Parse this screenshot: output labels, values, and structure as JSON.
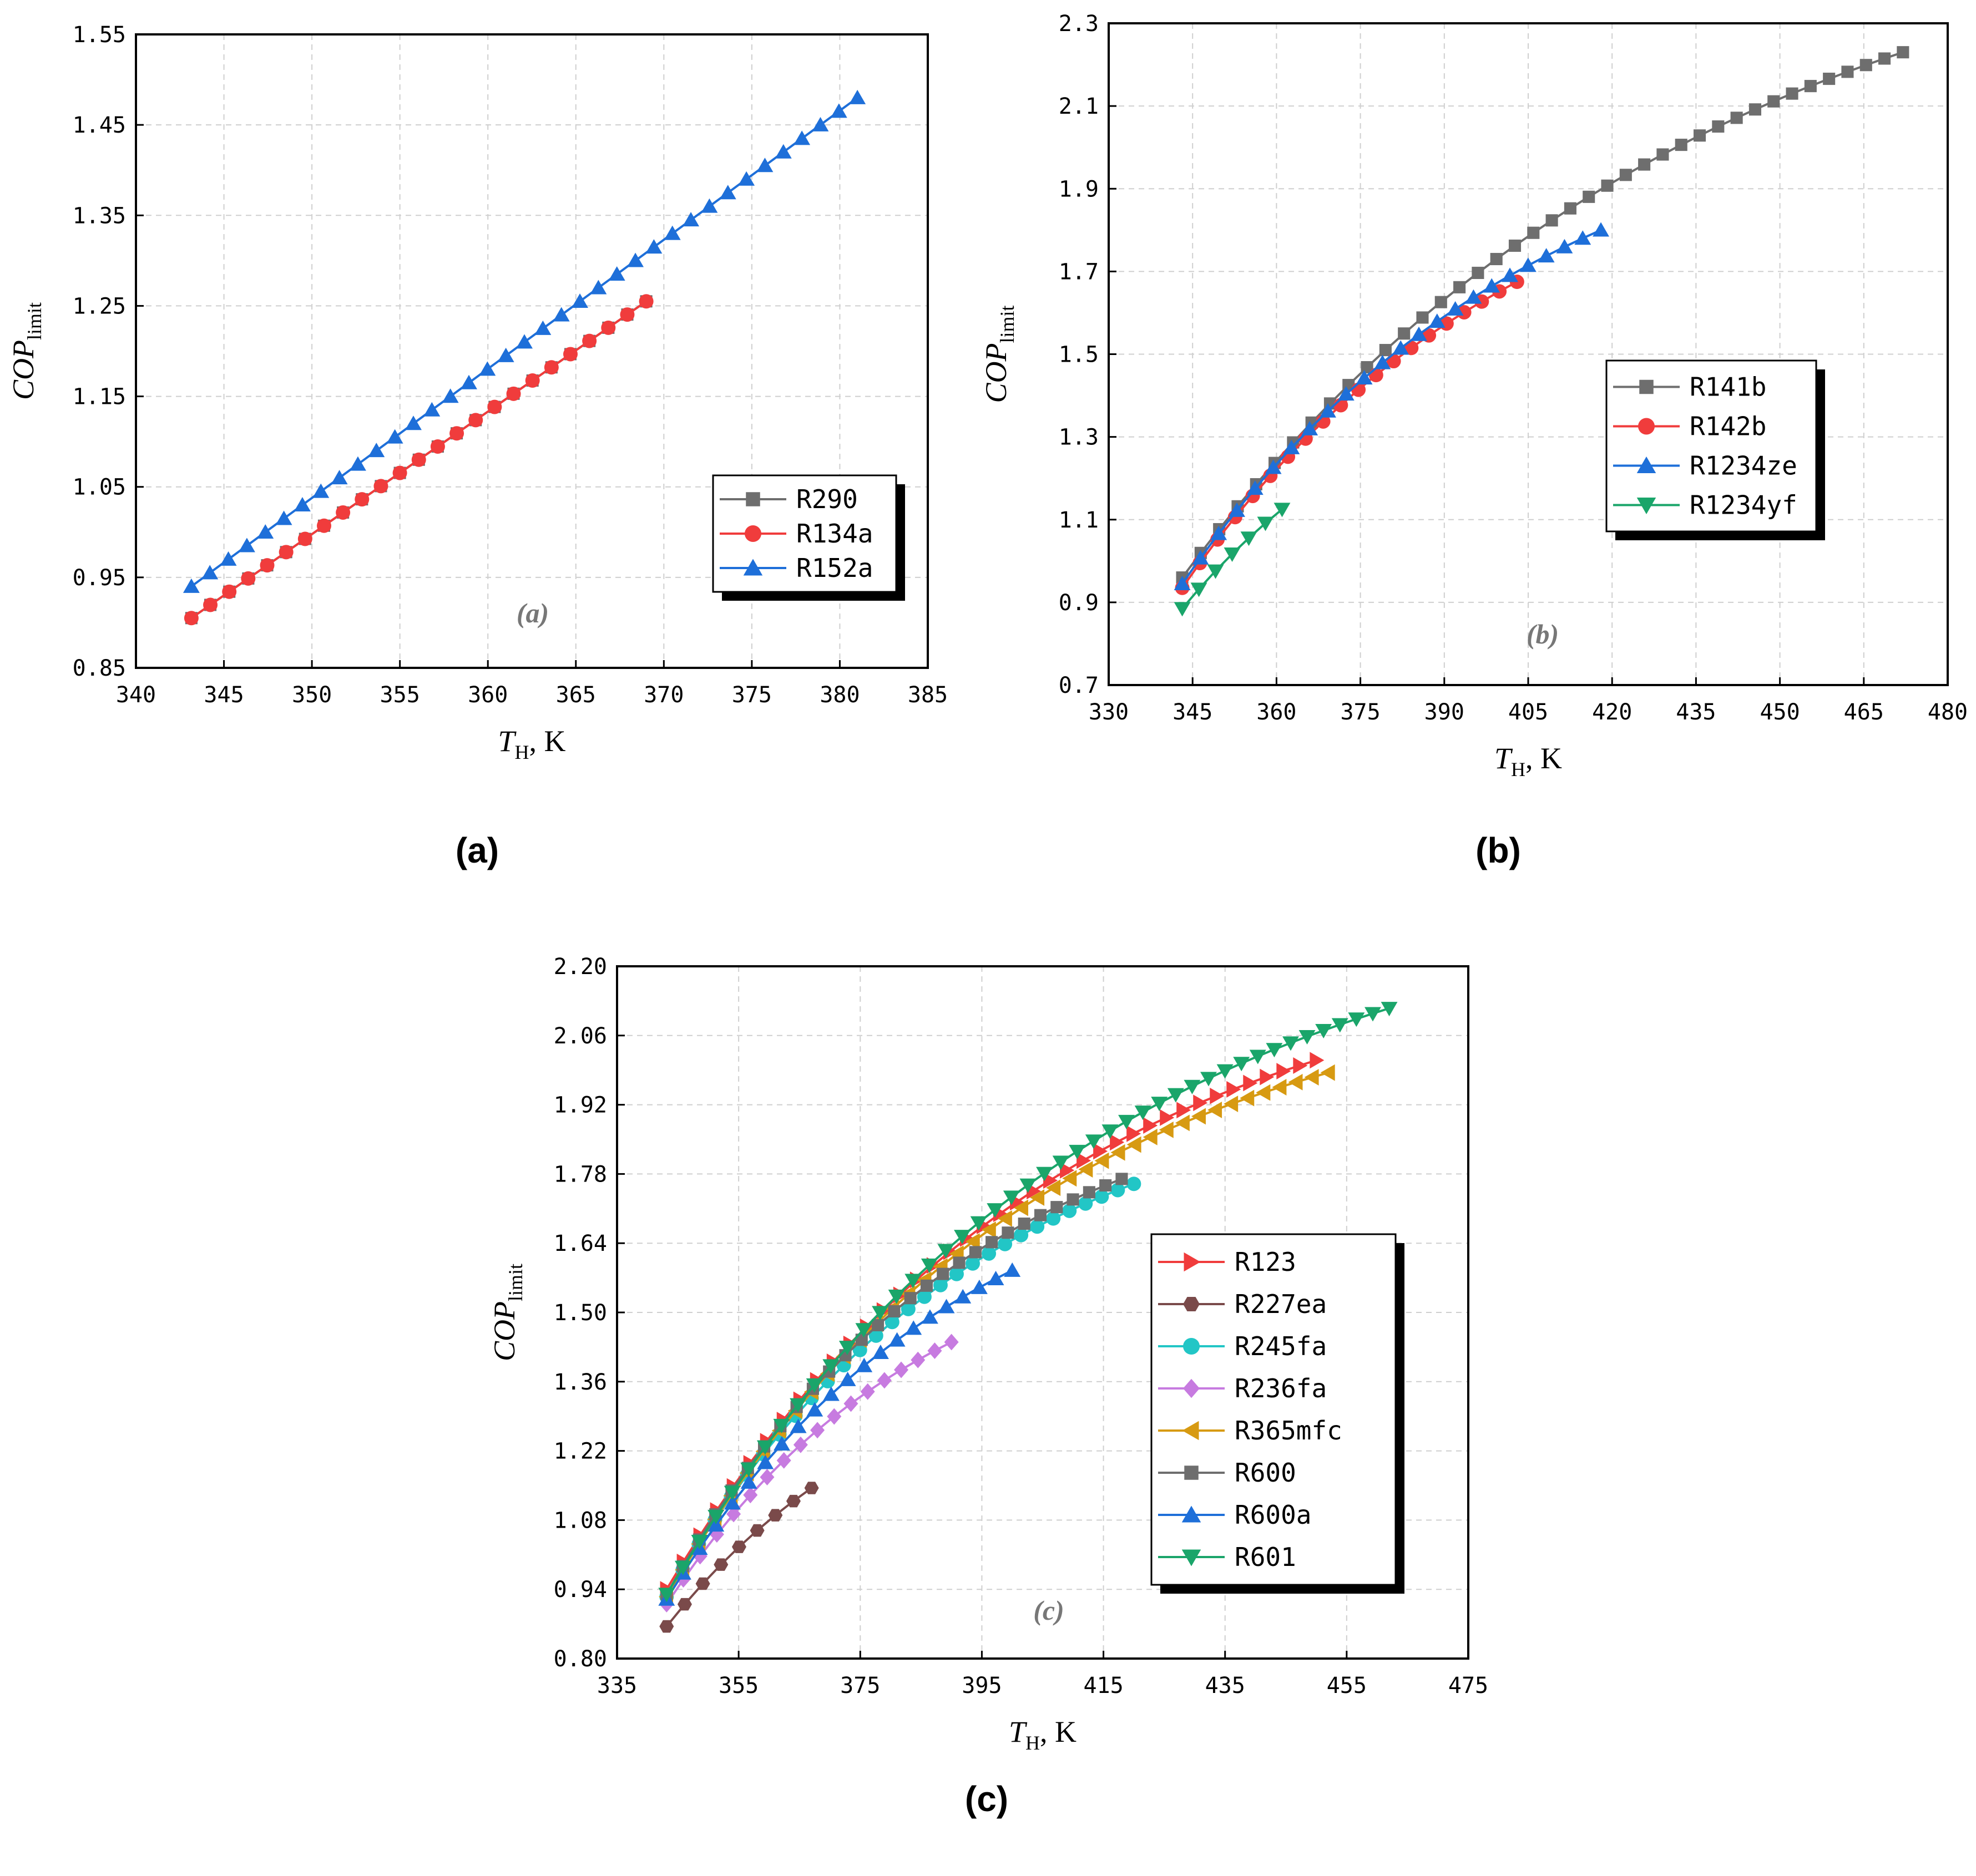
{
  "chart_data": [
    {
      "type": "line",
      "id": "a",
      "caption": "(a)",
      "inner_label": "(a)",
      "xlabel": {
        "main": "T",
        "sub": "H",
        "rest": ", K"
      },
      "ylabel": {
        "main": "COP",
        "sub": "limit"
      },
      "xlim": [
        340,
        385
      ],
      "ylim": [
        0.85,
        1.55
      ],
      "xticks": [
        340,
        345,
        350,
        355,
        360,
        365,
        370,
        375,
        380,
        385
      ],
      "yticks": [
        0.85,
        0.95,
        1.05,
        1.15,
        1.25,
        1.35,
        1.45,
        1.55
      ],
      "xtick_labels": [
        "340",
        "345",
        "350",
        "355",
        "360",
        "365",
        "370",
        "375",
        "380",
        "385"
      ],
      "ytick_labels": [
        "0.85",
        "0.95",
        "1.05",
        "1.15",
        "1.25",
        "1.35",
        "1.45",
        "1.55"
      ],
      "grid": true,
      "legend_position": "middle-right",
      "series": [
        {
          "name": "R290",
          "color": "#6e6e6e",
          "marker": "square",
          "x_start": 343.15,
          "x_end": 369,
          "y_start": 0.905,
          "y_end": 1.255,
          "curvature": 0.0,
          "n": 25
        },
        {
          "name": "R134a",
          "color": "#f03c3c",
          "marker": "circle",
          "x_start": 343.15,
          "x_end": 369,
          "y_start": 0.905,
          "y_end": 1.255,
          "curvature": 0.0,
          "n": 25
        },
        {
          "name": "R152a",
          "color": "#1e6fd9",
          "marker": "triangle-up",
          "x_start": 343.15,
          "x_end": 381,
          "y_start": 0.94,
          "y_end": 1.48,
          "curvature": 0.0,
          "n": 37
        }
      ]
    },
    {
      "type": "line",
      "id": "b",
      "caption": "(b)",
      "inner_label": "(b)",
      "xlabel": {
        "main": "T",
        "sub": "H",
        "rest": ", K"
      },
      "ylabel": {
        "main": "COP",
        "sub": "limit"
      },
      "xlim": [
        330,
        480
      ],
      "ylim": [
        0.7,
        2.3
      ],
      "xticks": [
        330,
        345,
        360,
        375,
        390,
        405,
        420,
        435,
        450,
        465,
        480
      ],
      "yticks": [
        0.7,
        0.9,
        1.1,
        1.3,
        1.5,
        1.7,
        1.9,
        2.1,
        2.3
      ],
      "xtick_labels": [
        "330",
        "345",
        "360",
        "375",
        "390",
        "405",
        "420",
        "435",
        "450",
        "465",
        "480"
      ],
      "ytick_labels": [
        "0.7",
        "0.9",
        "1.1",
        "1.3",
        "1.5",
        "1.7",
        "1.9",
        "2.1",
        "2.3"
      ],
      "grid": true,
      "legend_position": "middle-right",
      "series": [
        {
          "name": "R141b",
          "color": "#6e6e6e",
          "marker": "square",
          "x_start": 343.15,
          "x_end": 472,
          "y_start": 0.96,
          "y_end": 2.23,
          "curvature": 0.35,
          "n": 40
        },
        {
          "name": "R142b",
          "color": "#f03c3c",
          "marker": "circle",
          "x_start": 343.15,
          "x_end": 403,
          "y_start": 0.935,
          "y_end": 1.675,
          "curvature": 0.25,
          "n": 20
        },
        {
          "name": "R1234ze",
          "color": "#1e6fd9",
          "marker": "triangle-up",
          "x_start": 343.15,
          "x_end": 418,
          "y_start": 0.945,
          "y_end": 1.8,
          "curvature": 0.3,
          "n": 24
        },
        {
          "name": "R1234yf",
          "color": "#1aa56a",
          "marker": "triangle-down",
          "x_start": 343.15,
          "x_end": 361,
          "y_start": 0.885,
          "y_end": 1.125,
          "curvature": 0.1,
          "n": 7
        }
      ]
    },
    {
      "type": "line",
      "id": "c",
      "caption": "(c)",
      "inner_label": "(c)",
      "xlabel": {
        "main": "T",
        "sub": "H",
        "rest": ", K"
      },
      "ylabel": {
        "main": "COP",
        "sub": "limit"
      },
      "xlim": [
        335,
        475
      ],
      "ylim": [
        0.8,
        2.2
      ],
      "xticks": [
        335,
        355,
        375,
        395,
        415,
        435,
        455,
        475
      ],
      "yticks": [
        0.8,
        0.94,
        1.08,
        1.22,
        1.36,
        1.5,
        1.64,
        1.78,
        1.92,
        2.06,
        2.2
      ],
      "xtick_labels": [
        "335",
        "355",
        "375",
        "395",
        "415",
        "435",
        "455",
        "475"
      ],
      "ytick_labels": [
        "0.80",
        "0.94",
        "1.08",
        "1.22",
        "1.36",
        "1.50",
        "1.64",
        "1.78",
        "1.92",
        "2.06",
        "2.20"
      ],
      "grid": true,
      "legend_position": "middle-right",
      "series": [
        {
          "name": "R123",
          "color": "#f03c3c",
          "marker": "triangle-right",
          "x_start": 343.15,
          "x_end": 450,
          "y_start": 0.94,
          "y_end": 2.01,
          "curvature": 0.42,
          "n": 40
        },
        {
          "name": "R227ea",
          "color": "#7a4a4a",
          "marker": "hexagon",
          "x_start": 343.15,
          "x_end": 367,
          "y_start": 0.865,
          "y_end": 1.145,
          "curvature": 0.15,
          "n": 9
        },
        {
          "name": "R245fa",
          "color": "#22c6c6",
          "marker": "circle",
          "x_start": 343.15,
          "x_end": 420,
          "y_start": 0.925,
          "y_end": 1.76,
          "curvature": 0.38,
          "n": 30
        },
        {
          "name": "R236fa",
          "color": "#c77be0",
          "marker": "diamond",
          "x_start": 343.15,
          "x_end": 390,
          "y_start": 0.91,
          "y_end": 1.44,
          "curvature": 0.28,
          "n": 18
        },
        {
          "name": "R365mfc",
          "color": "#d79a12",
          "marker": "triangle-left",
          "x_start": 343.15,
          "x_end": 452,
          "y_start": 0.925,
          "y_end": 1.985,
          "curvature": 0.45,
          "n": 42
        },
        {
          "name": "R600",
          "color": "#6e6e6e",
          "marker": "square",
          "x_start": 343.15,
          "x_end": 418,
          "y_start": 0.93,
          "y_end": 1.77,
          "curvature": 0.38,
          "n": 29
        },
        {
          "name": "R600a",
          "color": "#1e6fd9",
          "marker": "triangle-up",
          "x_start": 343.15,
          "x_end": 400,
          "y_start": 0.92,
          "y_end": 1.585,
          "curvature": 0.3,
          "n": 22
        },
        {
          "name": "R601",
          "color": "#1aa56a",
          "marker": "triangle-down",
          "x_start": 343.15,
          "x_end": 462,
          "y_start": 0.93,
          "y_end": 2.115,
          "curvature": 0.42,
          "n": 45
        }
      ]
    }
  ]
}
